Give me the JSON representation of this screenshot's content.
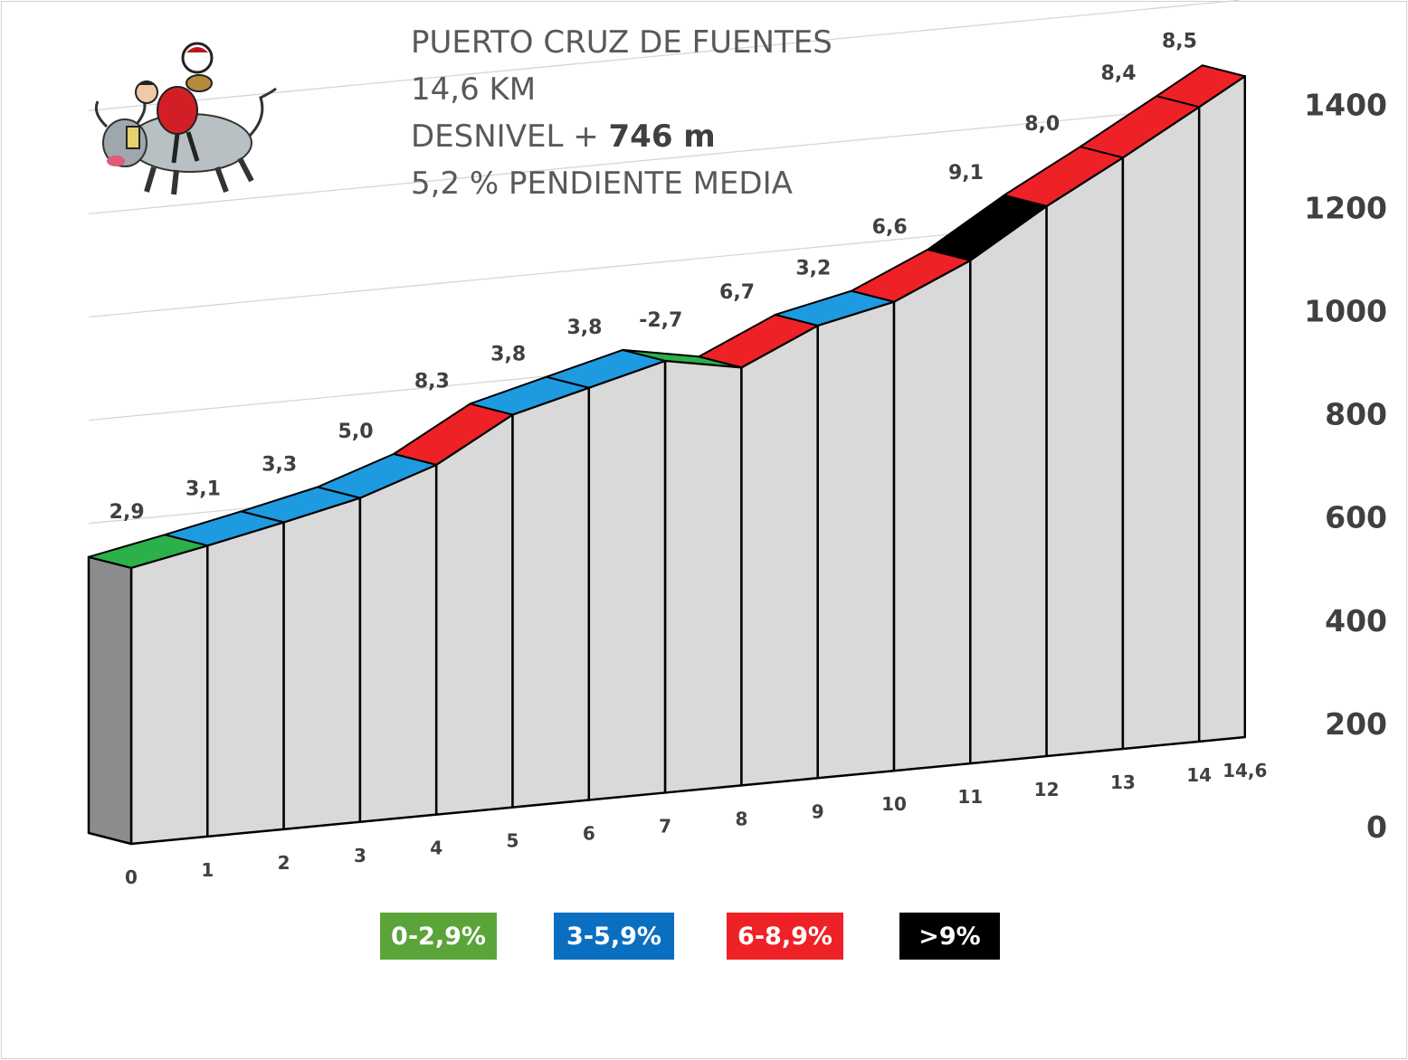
{
  "title": {
    "line1": "PUERTO CRUZ DE FUENTES",
    "line2": "14,6 KM",
    "line3_prefix": "DESNIVEL + ",
    "line3_value": "746 m",
    "line4": "5,2 % PENDIENTE  MEDIA"
  },
  "logo": {
    "icon": "bull-rider-cartoon-icon"
  },
  "colors": {
    "green": "#2bb04a",
    "blue": "#1e9ae0",
    "red": "#ee2127",
    "black": "#000000",
    "wall": "#d9d9d9",
    "start_wall": "#8c8c8c"
  },
  "legend": [
    {
      "label": "0-2,9%",
      "color": "#5aa43a"
    },
    {
      "label": "3-5,9%",
      "color": "#0b6fc1"
    },
    {
      "label": "6-8,9%",
      "color": "#ee2127"
    },
    {
      "label": ">9%",
      "color": "#000000"
    }
  ],
  "chart_data": {
    "type": "area",
    "y_ticks": [
      "0",
      "200",
      "400",
      "600",
      "800",
      "1000",
      "1200",
      "1400"
    ],
    "ylim": [
      0,
      1400
    ],
    "grid": true,
    "x_labels": [
      "0",
      "1",
      "2",
      "3",
      "4",
      "5",
      "6",
      "7",
      "8",
      "9",
      "10",
      "11",
      "12",
      "13",
      "14",
      "14,6"
    ],
    "x_km": [
      0,
      1,
      2,
      3,
      4,
      5,
      6,
      7,
      8,
      9,
      10,
      11,
      12,
      13,
      14,
      14.6
    ],
    "elevation_m": [
      535,
      564,
      595,
      628,
      678,
      761,
      799,
      837,
      810,
      877,
      909,
      975,
      1066,
      1146,
      1230,
      1281
    ],
    "segments": [
      {
        "label": "2,9",
        "color": "green"
      },
      {
        "label": "3,1",
        "color": "blue"
      },
      {
        "label": "3,3",
        "color": "blue"
      },
      {
        "label": "5,0",
        "color": "blue"
      },
      {
        "label": "8,3",
        "color": "red"
      },
      {
        "label": "3,8",
        "color": "blue"
      },
      {
        "label": "3,8",
        "color": "blue"
      },
      {
        "label": "-2,7",
        "color": "green"
      },
      {
        "label": "6,7",
        "color": "red"
      },
      {
        "label": "3,2",
        "color": "blue"
      },
      {
        "label": "6,6",
        "color": "red"
      },
      {
        "label": "9,1",
        "color": "black"
      },
      {
        "label": "8,0",
        "color": "red"
      },
      {
        "label": "8,4",
        "color": "red"
      },
      {
        "label": "8,5",
        "color": "red"
      }
    ]
  }
}
